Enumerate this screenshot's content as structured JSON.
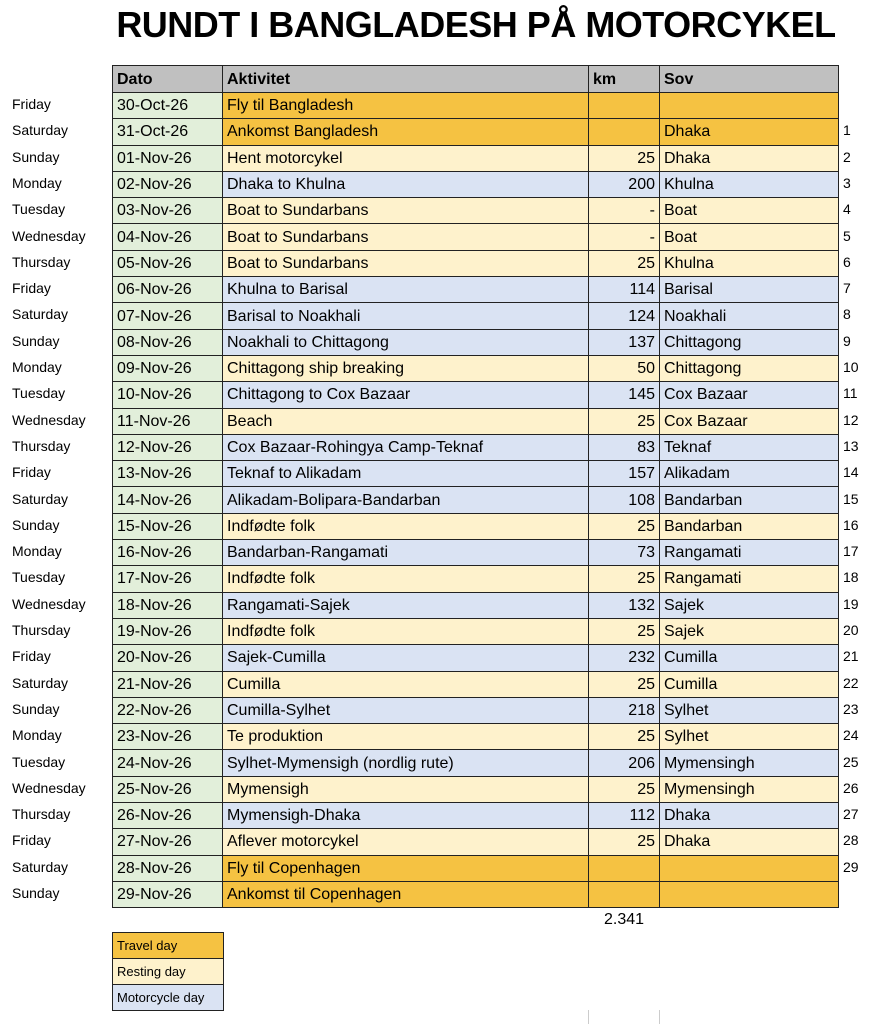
{
  "title": "RUNDT I BANGLADESH PÅ MOTORCYKEL",
  "headers": [
    "Dato",
    "Aktivitet",
    "km",
    "Sov"
  ],
  "colors": {
    "travel": "#f5c242",
    "rest": "#fef2cc",
    "moto": "#dae3f3",
    "date": "#e2efda",
    "header": "#c0c0c0"
  },
  "rows": [
    {
      "day": "Friday",
      "date": "30-Oct-26",
      "activity": "Fly til Bangladesh",
      "km": "",
      "sov": "",
      "n": "",
      "type": "travel"
    },
    {
      "day": "Saturday",
      "date": "31-Oct-26",
      "activity": "Ankomst Bangladesh",
      "km": "",
      "sov": "Dhaka",
      "n": "1",
      "type": "travel"
    },
    {
      "day": "Sunday",
      "date": "01-Nov-26",
      "activity": "Hent motorcykel",
      "km": "25",
      "sov": "Dhaka",
      "n": "2",
      "type": "rest"
    },
    {
      "day": "Monday",
      "date": "02-Nov-26",
      "activity": "Dhaka to Khulna",
      "km": "200",
      "sov": "Khulna",
      "n": "3",
      "type": "moto"
    },
    {
      "day": "Tuesday",
      "date": "03-Nov-26",
      "activity": "Boat to Sundarbans",
      "km": "-",
      "sov": "Boat",
      "n": "4",
      "type": "rest"
    },
    {
      "day": "Wednesday",
      "date": "04-Nov-26",
      "activity": "Boat to Sundarbans",
      "km": "-",
      "sov": "Boat",
      "n": "5",
      "type": "rest"
    },
    {
      "day": "Thursday",
      "date": "05-Nov-26",
      "activity": "Boat to Sundarbans",
      "km": "25",
      "sov": "Khulna",
      "n": "6",
      "type": "rest"
    },
    {
      "day": "Friday",
      "date": "06-Nov-26",
      "activity": "Khulna to Barisal",
      "km": "114",
      "sov": "Barisal",
      "n": "7",
      "type": "moto"
    },
    {
      "day": "Saturday",
      "date": "07-Nov-26",
      "activity": "Barisal to Noakhali",
      "km": "124",
      "sov": "Noakhali",
      "n": "8",
      "type": "moto"
    },
    {
      "day": "Sunday",
      "date": "08-Nov-26",
      "activity": "Noakhali to Chittagong",
      "km": "137",
      "sov": "Chittagong",
      "n": "9",
      "type": "moto"
    },
    {
      "day": "Monday",
      "date": "09-Nov-26",
      "activity": "Chittagong ship breaking",
      "km": "50",
      "sov": "Chittagong",
      "n": "10",
      "type": "rest"
    },
    {
      "day": "Tuesday",
      "date": "10-Nov-26",
      "activity": "Chittagong to Cox Bazaar",
      "km": "145",
      "sov": "Cox Bazaar",
      "n": "11",
      "type": "moto"
    },
    {
      "day": "Wednesday",
      "date": "11-Nov-26",
      "activity": "Beach",
      "km": "25",
      "sov": "Cox Bazaar",
      "n": "12",
      "type": "rest"
    },
    {
      "day": "Thursday",
      "date": "12-Nov-26",
      "activity": "Cox Bazaar-Rohingya Camp-Teknaf",
      "km": "83",
      "sov": "Teknaf",
      "n": "13",
      "type": "moto"
    },
    {
      "day": "Friday",
      "date": "13-Nov-26",
      "activity": "Teknaf to Alikadam",
      "km": "157",
      "sov": "Alikadam",
      "n": "14",
      "type": "moto"
    },
    {
      "day": "Saturday",
      "date": "14-Nov-26",
      "activity": "Alikadam-Bolipara-Bandarban",
      "km": "108",
      "sov": "Bandarban",
      "n": "15",
      "type": "moto"
    },
    {
      "day": "Sunday",
      "date": "15-Nov-26",
      "activity": "Indfødte folk",
      "km": "25",
      "sov": "Bandarban",
      "n": "16",
      "type": "rest"
    },
    {
      "day": "Monday",
      "date": "16-Nov-26",
      "activity": "Bandarban-Rangamati",
      "km": "73",
      "sov": "Rangamati",
      "n": "17",
      "type": "moto"
    },
    {
      "day": "Tuesday",
      "date": "17-Nov-26",
      "activity": "Indfødte folk",
      "km": "25",
      "sov": "Rangamati",
      "n": "18",
      "type": "rest"
    },
    {
      "day": "Wednesday",
      "date": "18-Nov-26",
      "activity": "Rangamati-Sajek",
      "km": "132",
      "sov": "Sajek",
      "n": "19",
      "type": "moto"
    },
    {
      "day": "Thursday",
      "date": "19-Nov-26",
      "activity": "Indfødte folk",
      "km": "25",
      "sov": "Sajek",
      "n": "20",
      "type": "rest"
    },
    {
      "day": "Friday",
      "date": "20-Nov-26",
      "activity": "Sajek-Cumilla",
      "km": "232",
      "sov": "Cumilla",
      "n": "21",
      "type": "moto"
    },
    {
      "day": "Saturday",
      "date": "21-Nov-26",
      "activity": "Cumilla",
      "km": "25",
      "sov": "Cumilla",
      "n": "22",
      "type": "rest"
    },
    {
      "day": "Sunday",
      "date": "22-Nov-26",
      "activity": "Cumilla-Sylhet",
      "km": "218",
      "sov": "Sylhet",
      "n": "23",
      "type": "moto"
    },
    {
      "day": "Monday",
      "date": "23-Nov-26",
      "activity": "Te produktion",
      "km": "25",
      "sov": "Sylhet",
      "n": "24",
      "type": "rest"
    },
    {
      "day": "Tuesday",
      "date": "24-Nov-26",
      "activity": "Sylhet-Mymensigh (nordlig rute)",
      "km": "206",
      "sov": "Mymensingh",
      "n": "25",
      "type": "moto"
    },
    {
      "day": "Wednesday",
      "date": "25-Nov-26",
      "activity": "Mymensigh",
      "km": "25",
      "sov": "Mymensingh",
      "n": "26",
      "type": "rest"
    },
    {
      "day": "Thursday",
      "date": "26-Nov-26",
      "activity": "Mymensigh-Dhaka",
      "km": "112",
      "sov": "Dhaka",
      "n": "27",
      "type": "moto"
    },
    {
      "day": "Friday",
      "date": "27-Nov-26",
      "activity": "Aflever motorcykel",
      "km": "25",
      "sov": "Dhaka",
      "n": "28",
      "type": "rest"
    },
    {
      "day": "Saturday",
      "date": "28-Nov-26",
      "activity": "Fly til Copenhagen",
      "km": "",
      "sov": "",
      "n": "29",
      "type": "travel"
    },
    {
      "day": "Sunday",
      "date": "29-Nov-26",
      "activity": "Ankomst til Copenhagen",
      "km": "",
      "sov": "",
      "n": "",
      "type": "travel"
    }
  ],
  "total_km": "2.341",
  "legend": [
    {
      "label": "Travel day",
      "type": "travel"
    },
    {
      "label": "Resting day",
      "type": "rest"
    },
    {
      "label": "Motorcycle day",
      "type": "moto"
    }
  ]
}
